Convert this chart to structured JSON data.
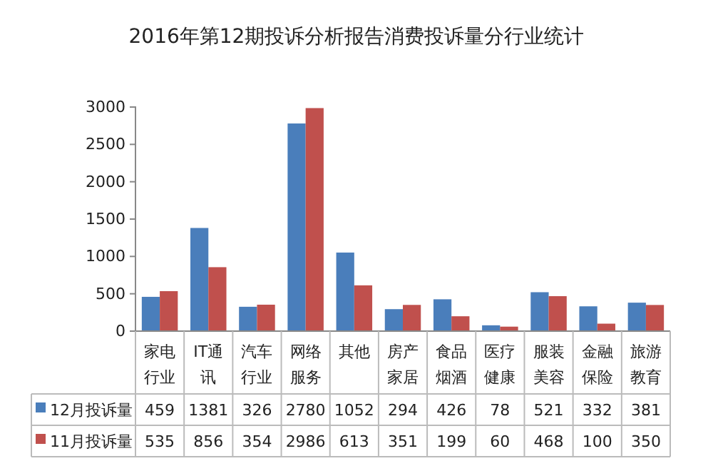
{
  "chart_data": {
    "type": "bar",
    "title": "2016年第12期投诉分析报告消费投诉量分行业统计",
    "categories": [
      "家电行业",
      "IT通讯",
      "汽车行业",
      "网络服务",
      "其他",
      "房产家居",
      "食品烟酒",
      "医疗健康",
      "服装美容",
      "金融保险",
      "旅游教育"
    ],
    "series": [
      {
        "name": "12月投诉量",
        "color": "#4a7ebb",
        "values": [
          459,
          1381,
          326,
          2780,
          1052,
          294,
          426,
          78,
          521,
          332,
          381
        ]
      },
      {
        "name": "11月投诉量",
        "color": "#c0504d",
        "values": [
          535,
          856,
          354,
          2986,
          613,
          351,
          199,
          60,
          468,
          100,
          350
        ]
      }
    ],
    "ylim": [
      0,
      3000
    ],
    "yticks": [
      0,
      500,
      1000,
      1500,
      2000,
      2500,
      3000
    ],
    "grid": false,
    "legend": "bottom",
    "data_labels": true
  }
}
